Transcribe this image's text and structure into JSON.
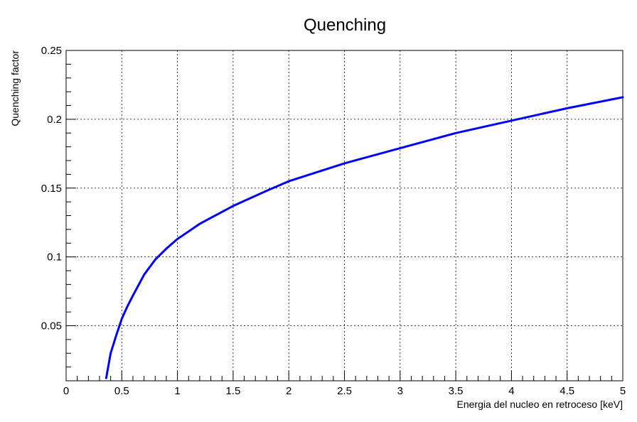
{
  "chart_data": {
    "type": "line",
    "title": "Quenching",
    "xlabel": "Energia del nucleo en retroceso [keV]",
    "ylabel": "Quenching factor",
    "xlim": [
      0,
      5
    ],
    "ylim": [
      0.01,
      0.25
    ],
    "grid": true,
    "x_ticks": [
      "0",
      "0.5",
      "1",
      "1.5",
      "2",
      "2.5",
      "3",
      "3.5",
      "4",
      "4.5",
      "5"
    ],
    "y_ticks": [
      "0.05",
      "0.1",
      "0.15",
      "0.2",
      "0.25"
    ],
    "series": [
      {
        "color": "#0000ff",
        "x": [
          0.36,
          0.4,
          0.45,
          0.5,
          0.55,
          0.6,
          0.7,
          0.8,
          0.9,
          1.0,
          1.2,
          1.5,
          1.8,
          2.0,
          2.5,
          3.0,
          3.5,
          4.0,
          4.5,
          5.0
        ],
        "y": [
          0.012,
          0.03,
          0.043,
          0.055,
          0.064,
          0.072,
          0.087,
          0.098,
          0.106,
          0.113,
          0.124,
          0.137,
          0.148,
          0.155,
          0.168,
          0.179,
          0.19,
          0.199,
          0.208,
          0.216
        ]
      }
    ]
  }
}
